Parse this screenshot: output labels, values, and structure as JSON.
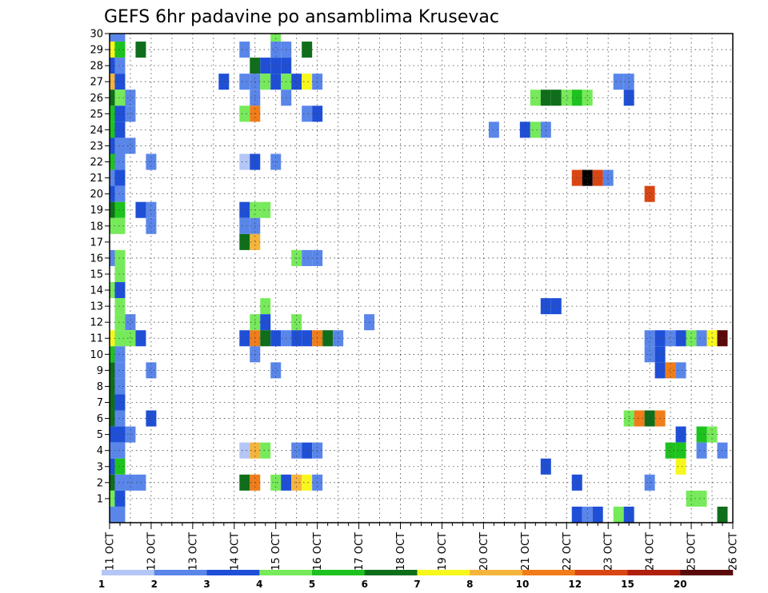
{
  "chart_data": {
    "type": "heatmap",
    "title": "GEFS 6hr padavine po ansamblima Krusevac",
    "x_axis": {
      "label": "",
      "tick_labels": [
        "11 OCT",
        "12 OCT",
        "13 OCT",
        "14 OCT",
        "15 OCT",
        "16 OCT",
        "17 OCT",
        "18 OCT",
        "19 OCT",
        "20 OCT",
        "21 OCT",
        "22 OCT",
        "23 OCT",
        "24 OCT",
        "25 OCT",
        "26 OCT"
      ],
      "steps_per_day": 4
    },
    "y_axis": {
      "label": "",
      "tick_labels": [
        "1",
        "2",
        "3",
        "4",
        "5",
        "6",
        "7",
        "8",
        "9",
        "10",
        "11",
        "12",
        "13",
        "14",
        "15",
        "16",
        "17",
        "18",
        "19",
        "20",
        "21",
        "22",
        "23",
        "24",
        "25",
        "26",
        "27",
        "28",
        "29",
        "30"
      ]
    },
    "grid": true,
    "colorbar": {
      "labels": [
        "1",
        "2",
        "3",
        "4",
        "5",
        "6",
        "7",
        "8",
        "10",
        "12",
        "15",
        "20"
      ],
      "colors": [
        "#b3c6f5",
        "#5a86ea",
        "#1f4fd6",
        "#76ea5a",
        "#1ec21e",
        "#0f6e1a",
        "#f7f71e",
        "#f5b43c",
        "#f07d19",
        "#d94613",
        "#b0200c",
        "#5a0a0a"
      ]
    },
    "cells": [
      [
        0,
        30,
        1
      ],
      [
        0,
        29,
        6
      ],
      [
        0,
        28,
        2
      ],
      [
        0,
        27,
        7
      ],
      [
        0,
        26,
        5
      ],
      [
        0,
        25,
        4
      ],
      [
        0,
        24,
        4
      ],
      [
        0,
        23,
        2
      ],
      [
        0,
        22,
        4
      ],
      [
        0,
        21,
        1
      ],
      [
        0,
        20,
        2
      ],
      [
        0,
        19,
        5
      ],
      [
        0,
        18,
        3
      ],
      [
        0,
        16,
        1
      ],
      [
        0,
        14,
        3
      ],
      [
        0,
        11,
        6
      ],
      [
        0,
        10,
        4
      ],
      [
        0,
        9,
        5
      ],
      [
        0,
        8,
        5
      ],
      [
        0,
        7,
        5
      ],
      [
        0,
        6,
        5
      ],
      [
        0,
        5,
        2
      ],
      [
        0,
        4,
        1
      ],
      [
        0,
        3,
        2
      ],
      [
        0,
        2,
        5
      ],
      [
        0,
        1,
        3
      ],
      [
        0,
        0,
        1
      ],
      [
        1,
        30,
        1
      ],
      [
        1,
        29,
        4
      ],
      [
        1,
        28,
        1
      ],
      [
        1,
        27,
        2
      ],
      [
        1,
        26,
        3
      ],
      [
        1,
        25,
        2
      ],
      [
        1,
        24,
        2
      ],
      [
        1,
        23,
        1
      ],
      [
        1,
        22,
        1
      ],
      [
        1,
        21,
        2
      ],
      [
        1,
        20,
        1
      ],
      [
        1,
        19,
        4
      ],
      [
        1,
        18,
        3
      ],
      [
        1,
        16,
        3
      ],
      [
        1,
        15,
        3
      ],
      [
        1,
        14,
        2
      ],
      [
        1,
        13,
        3
      ],
      [
        1,
        12,
        3
      ],
      [
        1,
        11,
        3
      ],
      [
        1,
        10,
        1
      ],
      [
        1,
        9,
        1
      ],
      [
        1,
        8,
        1
      ],
      [
        1,
        7,
        2
      ],
      [
        1,
        6,
        1
      ],
      [
        1,
        5,
        2
      ],
      [
        1,
        4,
        1
      ],
      [
        1,
        3,
        4
      ],
      [
        1,
        2,
        1
      ],
      [
        1,
        1,
        2
      ],
      [
        1,
        0,
        1
      ],
      [
        2,
        26,
        1
      ],
      [
        2,
        25,
        1
      ],
      [
        2,
        23,
        1
      ],
      [
        2,
        12,
        1
      ],
      [
        2,
        11,
        3
      ],
      [
        2,
        5,
        1
      ],
      [
        2,
        2,
        1
      ],
      [
        3,
        29,
        5
      ],
      [
        3,
        19,
        2
      ],
      [
        3,
        11,
        2
      ],
      [
        3,
        2,
        1
      ],
      [
        4,
        22,
        1
      ],
      [
        4,
        19,
        1
      ],
      [
        4,
        18,
        1
      ],
      [
        4,
        9,
        1
      ],
      [
        4,
        6,
        2
      ],
      [
        11,
        27,
        2
      ],
      [
        13,
        29,
        1
      ],
      [
        13,
        27,
        1
      ],
      [
        13,
        25,
        3
      ],
      [
        13,
        22,
        0
      ],
      [
        13,
        19,
        2
      ],
      [
        13,
        18,
        1
      ],
      [
        13,
        17,
        5
      ],
      [
        13,
        11,
        2
      ],
      [
        13,
        4,
        0
      ],
      [
        13,
        2,
        5
      ],
      [
        14,
        28,
        5
      ],
      [
        14,
        27,
        1
      ],
      [
        14,
        26,
        1
      ],
      [
        14,
        25,
        8
      ],
      [
        14,
        22,
        2
      ],
      [
        14,
        19,
        3
      ],
      [
        14,
        18,
        1
      ],
      [
        14,
        17,
        7
      ],
      [
        14,
        12,
        3
      ],
      [
        14,
        11,
        8
      ],
      [
        14,
        10,
        1
      ],
      [
        14,
        4,
        7
      ],
      [
        14,
        2,
        8
      ],
      [
        15,
        28,
        2
      ],
      [
        15,
        27,
        3
      ],
      [
        15,
        19,
        3
      ],
      [
        15,
        13,
        3
      ],
      [
        15,
        12,
        2
      ],
      [
        15,
        11,
        5
      ],
      [
        15,
        4,
        3
      ],
      [
        16,
        30,
        3
      ],
      [
        16,
        29,
        1
      ],
      [
        16,
        28,
        2
      ],
      [
        16,
        27,
        2
      ],
      [
        16,
        22,
        1
      ],
      [
        16,
        11,
        2
      ],
      [
        16,
        9,
        1
      ],
      [
        16,
        2,
        3
      ],
      [
        17,
        29,
        1
      ],
      [
        17,
        28,
        2
      ],
      [
        17,
        27,
        3
      ],
      [
        17,
        26,
        1
      ],
      [
        17,
        11,
        1
      ],
      [
        17,
        2,
        2
      ],
      [
        18,
        27,
        2
      ],
      [
        18,
        16,
        3
      ],
      [
        18,
        12,
        3
      ],
      [
        18,
        11,
        2
      ],
      [
        18,
        4,
        1
      ],
      [
        18,
        2,
        7
      ],
      [
        19,
        29,
        5
      ],
      [
        19,
        27,
        6
      ],
      [
        19,
        25,
        1
      ],
      [
        19,
        16,
        1
      ],
      [
        19,
        11,
        2
      ],
      [
        19,
        4,
        2
      ],
      [
        19,
        2,
        6
      ],
      [
        20,
        27,
        1
      ],
      [
        20,
        25,
        2
      ],
      [
        20,
        16,
        1
      ],
      [
        20,
        11,
        8
      ],
      [
        20,
        4,
        1
      ],
      [
        20,
        2,
        1
      ],
      [
        21,
        11,
        5
      ],
      [
        22,
        11,
        1
      ],
      [
        25,
        12,
        1
      ],
      [
        37,
        24,
        1
      ],
      [
        40,
        24,
        2
      ],
      [
        41,
        26,
        3
      ],
      [
        41,
        24,
        3
      ],
      [
        42,
        26,
        5
      ],
      [
        42,
        24,
        1
      ],
      [
        42,
        13,
        2
      ],
      [
        42,
        3,
        2
      ],
      [
        43,
        26,
        5
      ],
      [
        43,
        13,
        2
      ],
      [
        44,
        26,
        3
      ],
      [
        45,
        26,
        4
      ],
      [
        45,
        21,
        9
      ],
      [
        45,
        2,
        2
      ],
      [
        45,
        0,
        2
      ],
      [
        46,
        26,
        3
      ],
      [
        46,
        21,
        12
      ],
      [
        46,
        0,
        1
      ],
      [
        47,
        21,
        9
      ],
      [
        47,
        0,
        2
      ],
      [
        48,
        21,
        1
      ],
      [
        49,
        27,
        1
      ],
      [
        49,
        0,
        3
      ],
      [
        50,
        27,
        1
      ],
      [
        50,
        26,
        2
      ],
      [
        50,
        6,
        3
      ],
      [
        50,
        0,
        2
      ],
      [
        51,
        6,
        8
      ],
      [
        52,
        20,
        9
      ],
      [
        52,
        11,
        1
      ],
      [
        52,
        10,
        1
      ],
      [
        52,
        6,
        5
      ],
      [
        52,
        2,
        1
      ],
      [
        53,
        11,
        2
      ],
      [
        53,
        10,
        2
      ],
      [
        53,
        9,
        2
      ],
      [
        53,
        6,
        8
      ],
      [
        54,
        11,
        1
      ],
      [
        54,
        9,
        8
      ],
      [
        54,
        4,
        4
      ],
      [
        55,
        11,
        2
      ],
      [
        55,
        9,
        1
      ],
      [
        55,
        5,
        2
      ],
      [
        55,
        4,
        4
      ],
      [
        55,
        3,
        6
      ],
      [
        56,
        11,
        3
      ],
      [
        56,
        1,
        3
      ],
      [
        57,
        11,
        1
      ],
      [
        57,
        5,
        4
      ],
      [
        57,
        4,
        1
      ],
      [
        57,
        1,
        3
      ],
      [
        58,
        11,
        6
      ],
      [
        58,
        5,
        3
      ],
      [
        59,
        11,
        11
      ],
      [
        59,
        4,
        1
      ],
      [
        59,
        0,
        5
      ]
    ]
  }
}
